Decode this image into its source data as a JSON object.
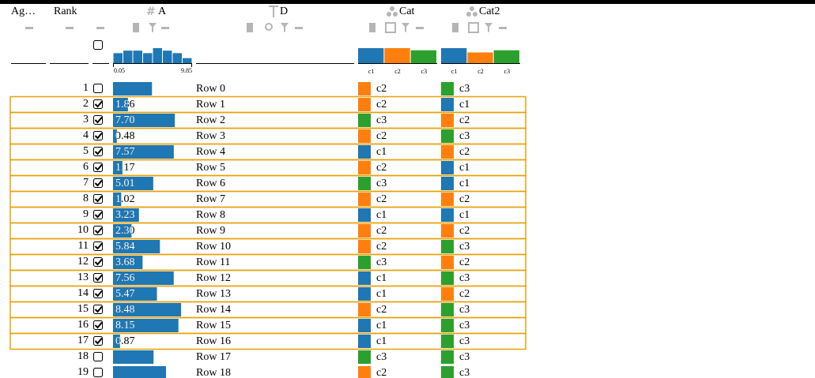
{
  "columns": [
    {
      "name": "Ag…"
    },
    {
      "name": "Rank"
    },
    {
      "name": "A"
    },
    {
      "name": "D"
    },
    {
      "name": "Cat"
    },
    {
      "name": "Cat2"
    }
  ],
  "a_scale": {
    "min": 0,
    "max": 9.85
  },
  "a_histogram": {
    "counts": [
      4,
      5,
      5,
      4,
      6,
      5,
      4,
      2
    ],
    "min_label": "0.05",
    "max_label": "9.85",
    "color": "#1f77b4"
  },
  "categories": [
    {
      "name": "c1",
      "color": "#1f77b4"
    },
    {
      "name": "c2",
      "color": "#ff7f0e"
    },
    {
      "name": "c3",
      "color": "#2ca02c"
    }
  ],
  "cat_summary": [
    7,
    7,
    6
  ],
  "cat2_summary": [
    7,
    5,
    6
  ],
  "selection_color": "#e8a10a",
  "rows": [
    {
      "rank": 1,
      "selected": false,
      "a": 4.85,
      "d": "Row 0",
      "cat": "c2",
      "cat2": "c3"
    },
    {
      "rank": 2,
      "selected": true,
      "a": 1.86,
      "a_label": "1.86",
      "d": "Row 1",
      "cat": "c2",
      "cat2": "c1"
    },
    {
      "rank": 3,
      "selected": true,
      "a": 7.7,
      "a_label": "7.70",
      "d": "Row 2",
      "cat": "c3",
      "cat2": "c2"
    },
    {
      "rank": 4,
      "selected": true,
      "a": 0.48,
      "a_label": "0.48",
      "d": "Row 3",
      "cat": "c2",
      "cat2": "c3"
    },
    {
      "rank": 5,
      "selected": true,
      "a": 7.57,
      "a_label": "7.57",
      "d": "Row 4",
      "cat": "c1",
      "cat2": "c2"
    },
    {
      "rank": 6,
      "selected": true,
      "a": 1.17,
      "a_label": "1.17",
      "d": "Row 5",
      "cat": "c2",
      "cat2": "c1"
    },
    {
      "rank": 7,
      "selected": true,
      "a": 5.01,
      "a_label": "5.01",
      "d": "Row 6",
      "cat": "c3",
      "cat2": "c1"
    },
    {
      "rank": 8,
      "selected": true,
      "a": 1.02,
      "a_label": "1.02",
      "d": "Row 7",
      "cat": "c2",
      "cat2": "c2"
    },
    {
      "rank": 9,
      "selected": true,
      "a": 3.23,
      "a_label": "3.23",
      "d": "Row 8",
      "cat": "c1",
      "cat2": "c1"
    },
    {
      "rank": 10,
      "selected": true,
      "a": 2.3,
      "a_label": "2.30",
      "d": "Row 9",
      "cat": "c2",
      "cat2": "c2"
    },
    {
      "rank": 11,
      "selected": true,
      "a": 5.84,
      "a_label": "5.84",
      "d": "Row 10",
      "cat": "c2",
      "cat2": "c3"
    },
    {
      "rank": 12,
      "selected": true,
      "a": 3.68,
      "a_label": "3.68",
      "d": "Row 11",
      "cat": "c3",
      "cat2": "c2"
    },
    {
      "rank": 13,
      "selected": true,
      "a": 7.56,
      "a_label": "7.56",
      "d": "Row 12",
      "cat": "c1",
      "cat2": "c3"
    },
    {
      "rank": 14,
      "selected": true,
      "a": 5.47,
      "a_label": "5.47",
      "d": "Row 13",
      "cat": "c1",
      "cat2": "c2"
    },
    {
      "rank": 15,
      "selected": true,
      "a": 8.48,
      "a_label": "8.48",
      "d": "Row 14",
      "cat": "c2",
      "cat2": "c3"
    },
    {
      "rank": 16,
      "selected": true,
      "a": 8.15,
      "a_label": "8.15",
      "d": "Row 15",
      "cat": "c1",
      "cat2": "c3"
    },
    {
      "rank": 17,
      "selected": true,
      "a": 0.87,
      "a_label": "0.87",
      "d": "Row 16",
      "cat": "c1",
      "cat2": "c3"
    },
    {
      "rank": 18,
      "selected": false,
      "a": 5.05,
      "d": "Row 17",
      "cat": "c3",
      "cat2": "c3"
    },
    {
      "rank": 19,
      "selected": false,
      "a": 6.6,
      "d": "Row 18",
      "cat": "c2",
      "cat2": "c3"
    }
  ]
}
